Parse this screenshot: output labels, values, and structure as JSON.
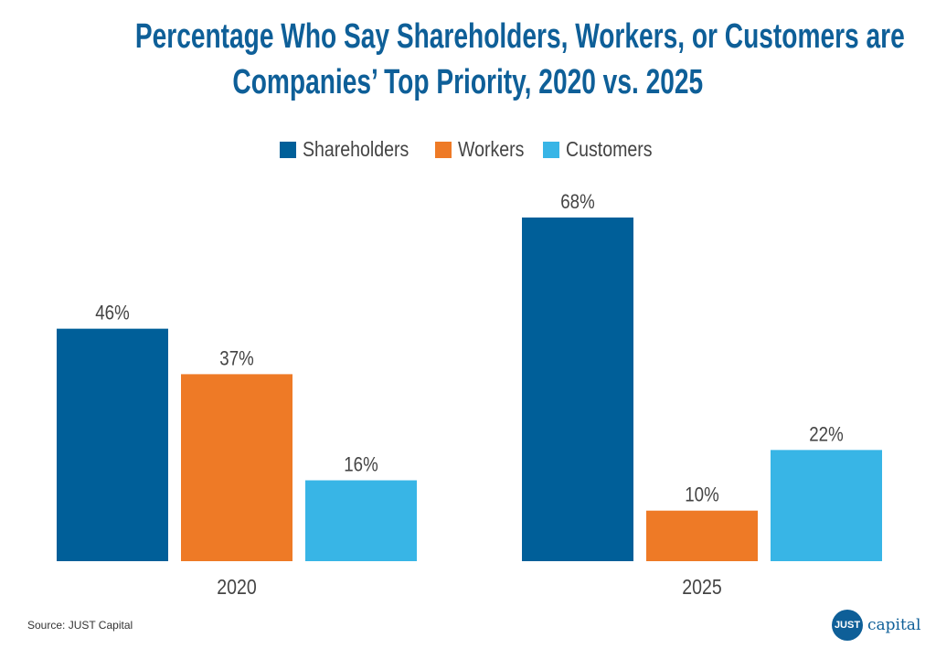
{
  "chart_data": {
    "type": "bar",
    "title": "Percentage Who Say Shareholders, Workers, or Customers are Companies’ Top Priority, 2020 vs. 2025",
    "title_lines": [
      "Percentage Who Say Shareholders, Workers, or Customers are",
      "Companies’ Top Priority, 2020 vs. 2025"
    ],
    "categories": [
      "2020",
      "2025"
    ],
    "series": [
      {
        "name": "Shareholders",
        "color": "#005f99",
        "values": [
          46,
          68
        ],
        "labels": [
          "46%",
          "68%"
        ]
      },
      {
        "name": "Workers",
        "color": "#ee7a26",
        "values": [
          37,
          10
        ],
        "labels": [
          "37%",
          "10%"
        ]
      },
      {
        "name": "Customers",
        "color": "#38b5e6",
        "values": [
          16,
          22
        ],
        "labels": [
          "16%",
          "22%"
        ]
      }
    ],
    "xlabel": "",
    "ylabel": "",
    "ylim": [
      0,
      68
    ],
    "grid": false,
    "legend_position": "top-center"
  },
  "source": "Source: JUST Capital",
  "logo": {
    "mark": "JUST",
    "word": "capital"
  }
}
